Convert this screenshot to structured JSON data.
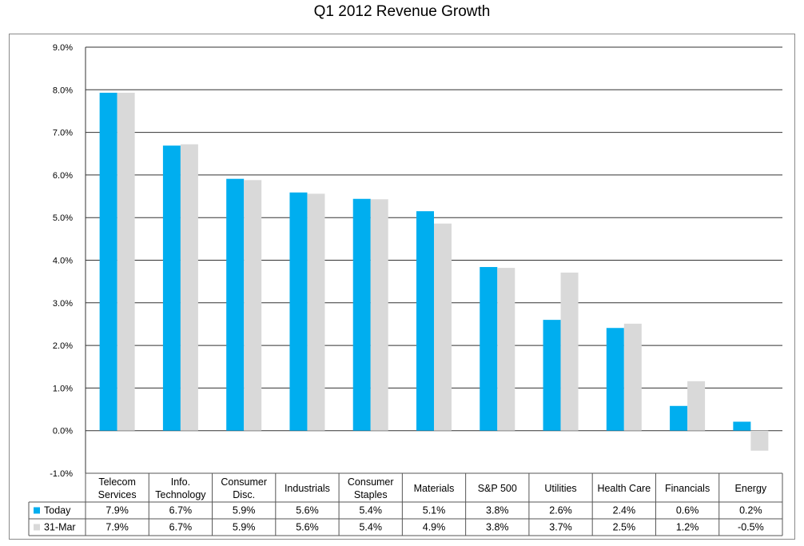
{
  "chart_data": {
    "type": "bar",
    "title": "Q1 2012 Revenue Growth",
    "xlabel": "",
    "ylabel": "",
    "ylim": [
      -1.0,
      9.0
    ],
    "yticks": [
      "9.0%",
      "8.0%",
      "7.0%",
      "6.0%",
      "5.0%",
      "4.0%",
      "3.0%",
      "2.0%",
      "1.0%",
      "0.0%",
      "-1.0%"
    ],
    "categories": [
      [
        "Telecom",
        "Services"
      ],
      [
        "Info.",
        "Technology"
      ],
      [
        "Consumer",
        "Disc."
      ],
      [
        "Industrials"
      ],
      [
        "Consumer",
        "Staples"
      ],
      [
        "Materials"
      ],
      [
        "S&P 500"
      ],
      [
        "Utilities"
      ],
      [
        "Health Care"
      ],
      [
        "Financials"
      ],
      [
        "Energy"
      ]
    ],
    "series": [
      {
        "name": "Today",
        "color": "#00aeef",
        "values": [
          7.93,
          6.69,
          5.91,
          5.59,
          5.44,
          5.15,
          3.84,
          2.6,
          2.41,
          0.58,
          0.21
        ],
        "labels": [
          "7.9%",
          "6.7%",
          "5.9%",
          "5.6%",
          "5.4%",
          "5.1%",
          "3.8%",
          "2.6%",
          "2.4%",
          "0.6%",
          "0.2%"
        ]
      },
      {
        "name": "31-Mar",
        "color": "#d9d9d9",
        "values": [
          7.93,
          6.72,
          5.88,
          5.56,
          5.43,
          4.86,
          3.82,
          3.71,
          2.51,
          1.16,
          -0.47
        ],
        "labels": [
          "7.9%",
          "6.7%",
          "5.9%",
          "5.6%",
          "5.4%",
          "4.9%",
          "3.8%",
          "3.7%",
          "2.5%",
          "1.2%",
          "-0.5%"
        ]
      }
    ],
    "grid": true,
    "legend": "data-table"
  }
}
